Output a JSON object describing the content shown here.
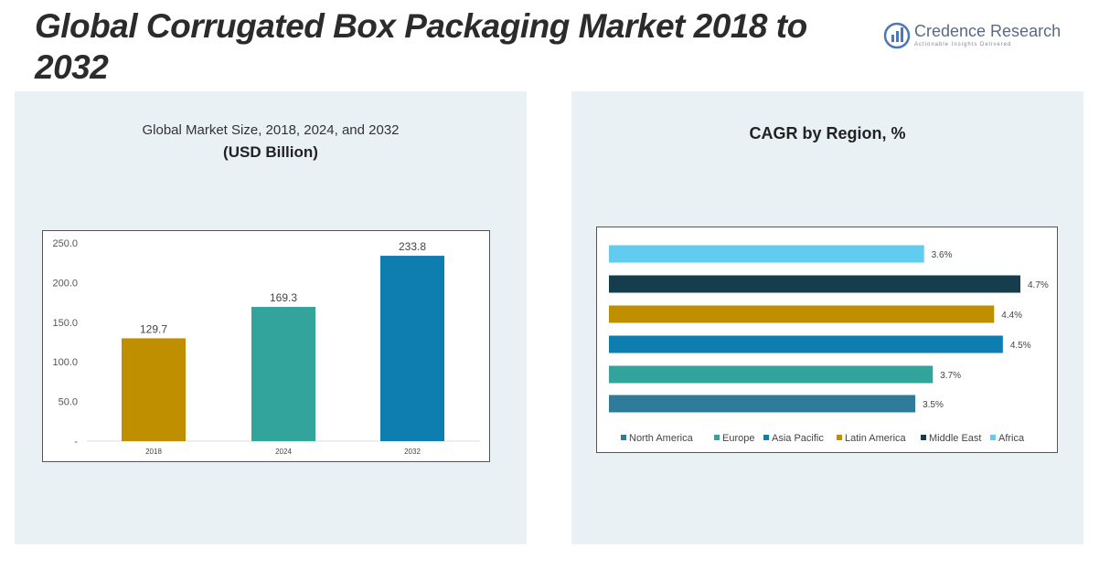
{
  "header": {
    "title": "Global Corrugated Box Packaging Market 2018 to 2032",
    "logo_name": "Credence Research",
    "logo_tagline": "Actionable Insights Delivered"
  },
  "left_panel": {
    "title_line1": "Global Market Size, 2018, 2024, and 2032",
    "title_line2": "(USD Billion)"
  },
  "right_panel": {
    "title": "CAGR by Region, %"
  },
  "colors": {
    "mustard": "#bf8f00",
    "teal": "#32a49c",
    "blue": "#0e7db0",
    "steel": "#2e7b9a",
    "dark": "#163d4d",
    "light_blue": "#62ccf0"
  },
  "chart_data": [
    {
      "type": "bar",
      "categories": [
        "2018",
        "2024",
        "2032"
      ],
      "values": [
        129.7,
        169.3,
        233.8
      ],
      "data_labels": [
        "129.7",
        "169.3",
        "233.8"
      ],
      "y_ticks": [
        "-",
        "50.0",
        "100.0",
        "150.0",
        "200.0",
        "250.0"
      ],
      "ylim": [
        0,
        250
      ],
      "bar_colors": [
        "#bf8f00",
        "#32a49c",
        "#0e7db0"
      ],
      "grid": false
    },
    {
      "type": "bar",
      "orientation": "horizontal",
      "categories": [
        "North America",
        "Europe",
        "Asia Pacific",
        "Latin America",
        "Middle East",
        "Africa"
      ],
      "values": [
        3.5,
        3.7,
        4.5,
        4.4,
        4.7,
        3.6
      ],
      "data_labels": [
        "3.5%",
        "3.7%",
        "4.5%",
        "4.4%",
        "4.7%",
        "3.6%"
      ],
      "colors": [
        "#2e7b9a",
        "#32a49c",
        "#0e7db0",
        "#bf8f00",
        "#163d4d",
        "#62ccf0"
      ],
      "xlim": [
        0,
        4.7
      ],
      "legend": "bottom",
      "grid": false
    }
  ]
}
